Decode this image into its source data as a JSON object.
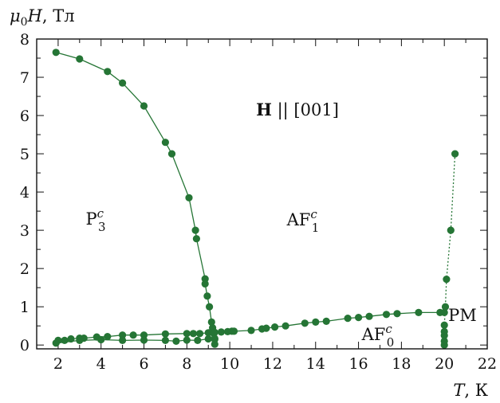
{
  "chart_data": {
    "type": "scatter",
    "xlabel": "T, К",
    "ylabel": "μ0H, Тл",
    "xlim": [
      1,
      22
    ],
    "ylim": [
      -0.1,
      8
    ],
    "x_ticks": [
      2,
      4,
      6,
      8,
      10,
      12,
      14,
      16,
      18,
      20,
      22
    ],
    "y_ticks": [
      0,
      1,
      2,
      3,
      4,
      5,
      6,
      7,
      8
    ],
    "color": "#257535",
    "annotations": {
      "field_direction": "H || [001]",
      "phase_p3": "P3c",
      "phase_af1": "AF1c",
      "phase_af0": "AF0c",
      "phase_pm": "PM"
    },
    "series": [
      {
        "line": "solid",
        "points": [
          [
            1.9,
            7.65
          ],
          [
            3.0,
            7.48
          ],
          [
            4.3,
            7.15
          ],
          [
            5.0,
            6.85
          ],
          [
            6.0,
            6.25
          ],
          [
            7.0,
            5.3
          ],
          [
            7.3,
            5.0
          ],
          [
            8.1,
            3.85
          ],
          [
            8.4,
            3.0
          ],
          [
            8.45,
            2.78
          ],
          [
            8.85,
            1.73
          ],
          [
            8.85,
            1.6
          ],
          [
            8.95,
            1.28
          ],
          [
            9.05,
            1.0
          ],
          [
            9.15,
            0.6
          ],
          [
            9.2,
            0.45
          ],
          [
            9.25,
            0.3
          ],
          [
            9.3,
            0.15
          ],
          [
            9.3,
            0.02
          ]
        ]
      },
      {
        "line": "solid",
        "points": [
          [
            2.0,
            0.12
          ],
          [
            2.3,
            0.12
          ],
          [
            2.6,
            0.16
          ],
          [
            3.0,
            0.18
          ],
          [
            3.2,
            0.18
          ],
          [
            3.8,
            0.21
          ],
          [
            4.3,
            0.22
          ],
          [
            5.0,
            0.26
          ],
          [
            5.5,
            0.26
          ],
          [
            6.0,
            0.26
          ],
          [
            7.0,
            0.29
          ],
          [
            8.0,
            0.3
          ],
          [
            8.3,
            0.3
          ],
          [
            8.6,
            0.3
          ],
          [
            9.0,
            0.32
          ],
          [
            9.3,
            0.33
          ],
          [
            9.6,
            0.34
          ],
          [
            9.9,
            0.35
          ],
          [
            10.1,
            0.36
          ],
          [
            10.2,
            0.36
          ],
          [
            11.0,
            0.38
          ],
          [
            11.5,
            0.42
          ],
          [
            11.7,
            0.44
          ],
          [
            12.1,
            0.47
          ],
          [
            12.6,
            0.5
          ],
          [
            13.5,
            0.57
          ],
          [
            14.0,
            0.6
          ],
          [
            14.5,
            0.62
          ],
          [
            15.5,
            0.7
          ],
          [
            16.0,
            0.72
          ],
          [
            16.5,
            0.75
          ],
          [
            17.3,
            0.8
          ],
          [
            17.8,
            0.82
          ],
          [
            18.8,
            0.85
          ],
          [
            19.8,
            0.85
          ],
          [
            20.0,
            0.85
          ]
        ]
      },
      {
        "line": "solid",
        "points": [
          [
            1.9,
            0.05
          ],
          [
            3.0,
            0.12
          ],
          [
            4.0,
            0.14
          ],
          [
            5.0,
            0.12
          ],
          [
            6.0,
            0.13
          ],
          [
            7.0,
            0.12
          ],
          [
            7.5,
            0.1
          ],
          [
            8.0,
            0.13
          ],
          [
            8.5,
            0.12
          ],
          [
            9.0,
            0.16
          ],
          [
            9.3,
            0.17
          ]
        ]
      },
      {
        "line": "dotted",
        "points": [
          [
            20.0,
            0.0
          ],
          [
            20.0,
            0.1
          ],
          [
            20.0,
            0.25
          ],
          [
            20.0,
            0.35
          ],
          [
            20.0,
            0.52
          ],
          [
            20.05,
            1.0
          ],
          [
            20.1,
            1.72
          ],
          [
            20.3,
            3.0
          ],
          [
            20.5,
            5.0
          ]
        ]
      }
    ]
  }
}
